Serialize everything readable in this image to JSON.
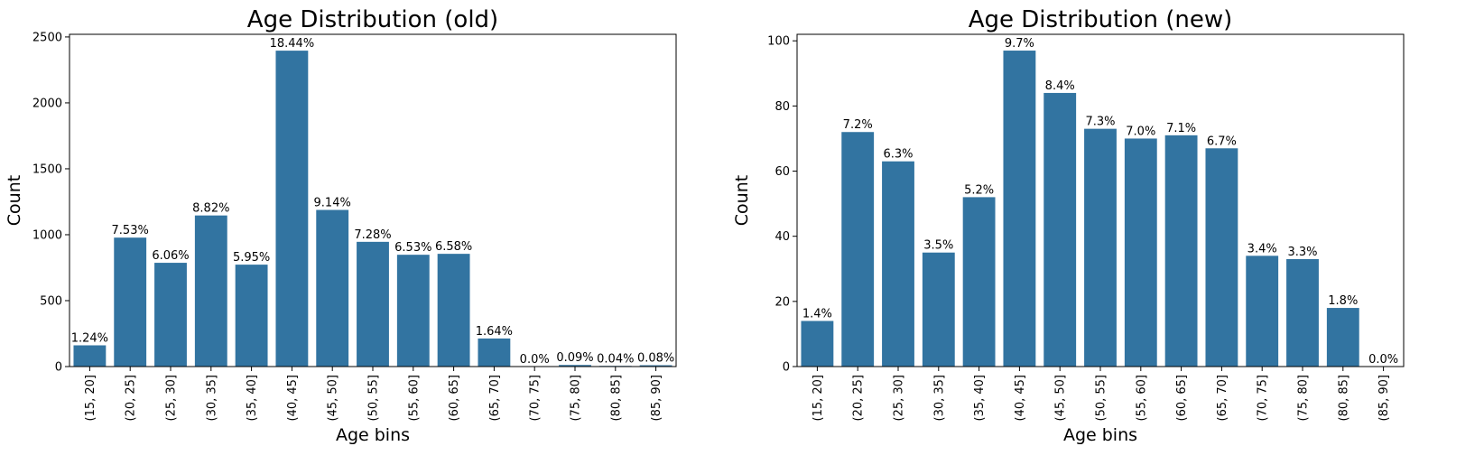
{
  "chart_data": [
    {
      "type": "bar",
      "title": "Age Distribution (old)",
      "xlabel": "Age bins",
      "ylabel": "Count",
      "ylim": [
        0,
        2520
      ],
      "yticks": [
        0,
        500,
        1000,
        1500,
        2000,
        2500
      ],
      "color": "#3274a1",
      "grid": false,
      "legend": "none",
      "categories": [
        "(15, 20]",
        "(20, 25]",
        "(25, 30]",
        "(30, 35]",
        "(35, 40]",
        "(40, 45]",
        "(45, 50]",
        "(50, 55]",
        "(55, 60]",
        "(60, 65]",
        "(65, 70]",
        "(70, 75]",
        "(75, 80]",
        "(80, 85]",
        "(85, 90]"
      ],
      "values": [
        161,
        978,
        787,
        1146,
        773,
        2396,
        1188,
        946,
        848,
        855,
        213,
        0,
        12,
        5,
        10
      ],
      "data_labels": [
        "1.24%",
        "7.53%",
        "6.06%",
        "8.82%",
        "5.95%",
        "18.44%",
        "9.14%",
        "7.28%",
        "6.53%",
        "6.58%",
        "1.64%",
        "0.0%",
        "0.09%",
        "0.04%",
        "0.08%"
      ]
    },
    {
      "type": "bar",
      "title": "Age Distribution (new)",
      "xlabel": "Age bins",
      "ylabel": "Count",
      "ylim": [
        0,
        102
      ],
      "yticks": [
        0,
        20,
        40,
        60,
        80,
        100
      ],
      "color": "#3274a1",
      "grid": false,
      "legend": "none",
      "categories": [
        "(15, 20]",
        "(20, 25]",
        "(25, 30]",
        "(30, 35]",
        "(35, 40]",
        "(40, 45]",
        "(45, 50]",
        "(50, 55]",
        "(55, 60]",
        "(60, 65]",
        "(65, 70]",
        "(70, 75]",
        "(75, 80]",
        "(80, 85]",
        "(85, 90]"
      ],
      "values": [
        14,
        72,
        63,
        35,
        52,
        97,
        84,
        73,
        70,
        71,
        67,
        34,
        33,
        18,
        0
      ],
      "data_labels": [
        "1.4%",
        "7.2%",
        "6.3%",
        "3.5%",
        "5.2%",
        "9.7%",
        "8.4%",
        "7.3%",
        "7.0%",
        "7.1%",
        "6.7%",
        "3.4%",
        "3.3%",
        "1.8%",
        "0.0%"
      ]
    }
  ]
}
